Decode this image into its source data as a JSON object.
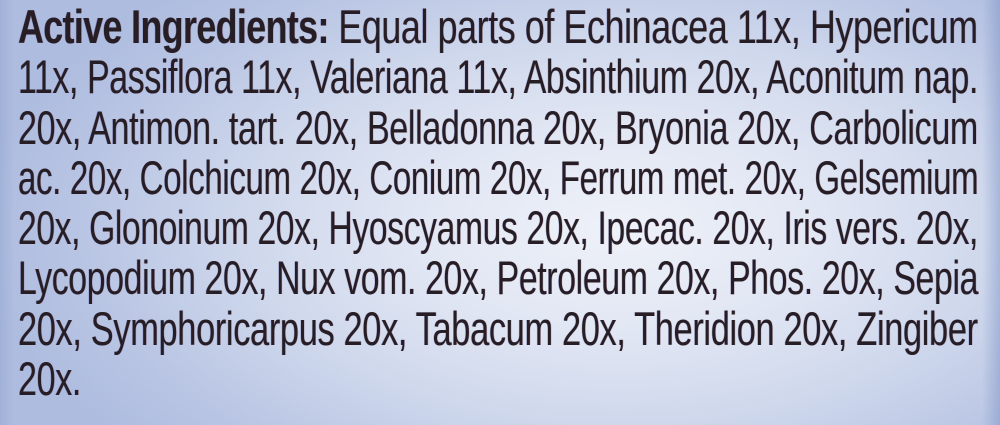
{
  "label": {
    "heading": "Active Ingredients:",
    "heading_continuation": " Equal parts of Echinacea 11x, Hypericum",
    "lines": [
      "11x, Passiflora 11x, Valeriana 11x, Absinthium 20x, Aconitum nap.",
      "20x, Antimon. tart. 20x, Belladonna 20x, Bryonia 20x, Carbolicum",
      "ac. 20x, Colchicum 20x, Conium 20x, Ferrum met. 20x, Gelsemium",
      "20x, Glonoinum 20x, Hyoscyamus 20x, Ipecac. 20x, Iris vers. 20x,",
      "Lycopodium 20x, Nux vom. 20x, Petroleum 20x, Phos. 20x, Sepia",
      "20x, Symphoricarpus 20x, Tabacum 20x, Theridion 20x, Zingiber",
      "20x."
    ],
    "ingredients": [
      {
        "name": "Echinacea",
        "potency": "11x"
      },
      {
        "name": "Hypericum",
        "potency": "11x"
      },
      {
        "name": "Passiflora",
        "potency": "11x"
      },
      {
        "name": "Valeriana",
        "potency": "11x"
      },
      {
        "name": "Absinthium",
        "potency": "20x"
      },
      {
        "name": "Aconitum nap.",
        "potency": "20x"
      },
      {
        "name": "Antimon. tart.",
        "potency": "20x"
      },
      {
        "name": "Belladonna",
        "potency": "20x"
      },
      {
        "name": "Bryonia",
        "potency": "20x"
      },
      {
        "name": "Carbolicum ac.",
        "potency": "20x"
      },
      {
        "name": "Colchicum",
        "potency": "20x"
      },
      {
        "name": "Conium",
        "potency": "20x"
      },
      {
        "name": "Ferrum met.",
        "potency": "20x"
      },
      {
        "name": "Gelsemium",
        "potency": "20x"
      },
      {
        "name": "Glonoinum",
        "potency": "20x"
      },
      {
        "name": "Hyoscyamus",
        "potency": "20x"
      },
      {
        "name": "Ipecac.",
        "potency": "20x"
      },
      {
        "name": "Iris vers.",
        "potency": "20x"
      },
      {
        "name": "Lycopodium",
        "potency": "20x"
      },
      {
        "name": "Nux vom.",
        "potency": "20x"
      },
      {
        "name": "Petroleum",
        "potency": "20x"
      },
      {
        "name": "Phos.",
        "potency": "20x"
      },
      {
        "name": "Sepia",
        "potency": "20x"
      },
      {
        "name": "Symphoricarpus",
        "potency": "20x"
      },
      {
        "name": "Tabacum",
        "potency": "20x"
      },
      {
        "name": "Theridion",
        "potency": "20x"
      },
      {
        "name": "Zingiber",
        "potency": "20x"
      }
    ],
    "colors": {
      "text": "#261e24",
      "background_center": "#eef1f8",
      "background_edge": "#aebcdf"
    }
  }
}
